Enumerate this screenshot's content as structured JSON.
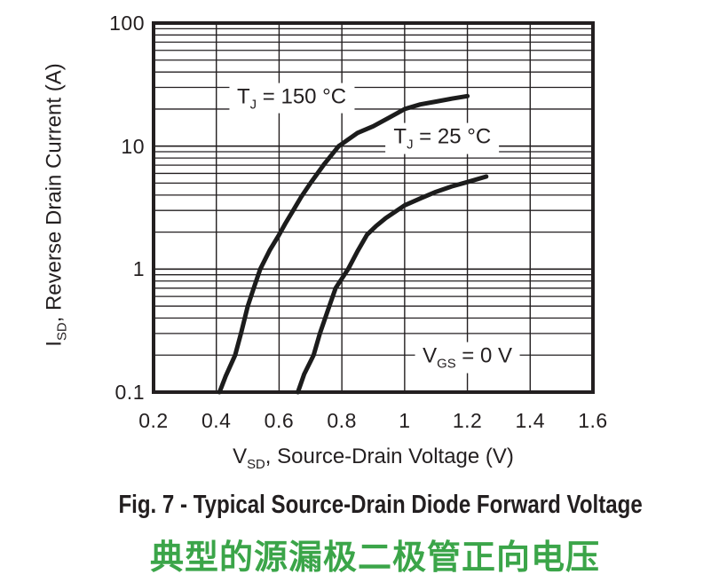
{
  "figure": {
    "caption_en": "Fig. 7 - Typical Source-Drain Diode Forward Voltage",
    "caption_zh": "典型的源漏极二极管正向电压"
  },
  "colors": {
    "line": "#1c1c1c",
    "grid": "#231f20",
    "text": "#231f20",
    "caption_zh_green": "#3ba549"
  },
  "chart_data": {
    "type": "line",
    "title": "",
    "x_axis": {
      "label": {
        "main": "V",
        "sub": "SD",
        "rest": ", Source-Drain Voltage (V)"
      },
      "scale": "linear",
      "min": 0.2,
      "max": 1.6,
      "tick_values": [
        0.2,
        0.4,
        0.6,
        0.8,
        1.0,
        1.2,
        1.4,
        1.6
      ],
      "tick_labels": [
        "0.2",
        "0.4",
        "0.6",
        "0.8",
        "1",
        "1.2",
        "1.4",
        "1.6"
      ],
      "grid": "major"
    },
    "y_axis": {
      "label": {
        "main": "I",
        "sub": "SD",
        "rest": ", Reverse Drain Current (A)"
      },
      "scale": "log",
      "min": 0.1,
      "max": 100,
      "tick_values": [
        100,
        10,
        1,
        0.1
      ],
      "tick_labels": [
        "100",
        "10",
        "1",
        "0.1"
      ],
      "grid": "major+minor"
    },
    "legend_position": "none",
    "series": [
      {
        "name": "TJ = 150 °C",
        "key": "tj-150c",
        "points": [
          [
            0.41,
            0.1
          ],
          [
            0.43,
            0.135
          ],
          [
            0.46,
            0.2
          ],
          [
            0.48,
            0.31
          ],
          [
            0.5,
            0.5
          ],
          [
            0.52,
            0.71
          ],
          [
            0.54,
            1.0
          ],
          [
            0.57,
            1.42
          ],
          [
            0.6,
            1.9
          ],
          [
            0.62,
            2.35
          ],
          [
            0.645,
            3.0
          ],
          [
            0.67,
            3.85
          ],
          [
            0.7,
            5.0
          ],
          [
            0.745,
            7.2
          ],
          [
            0.79,
            10.0
          ],
          [
            0.85,
            12.8
          ],
          [
            0.9,
            14.5
          ],
          [
            0.95,
            17.0
          ],
          [
            1.0,
            20.0
          ],
          [
            1.05,
            21.8
          ],
          [
            1.1,
            23.0
          ],
          [
            1.15,
            24.3
          ],
          [
            1.2,
            25.5
          ]
        ]
      },
      {
        "name": "TJ = 25 °C",
        "key": "tj-25c",
        "points": [
          [
            0.66,
            0.1
          ],
          [
            0.68,
            0.14
          ],
          [
            0.71,
            0.2
          ],
          [
            0.73,
            0.3
          ],
          [
            0.76,
            0.5
          ],
          [
            0.78,
            0.7
          ],
          [
            0.82,
            1.0
          ],
          [
            0.85,
            1.4
          ],
          [
            0.88,
            1.9
          ],
          [
            0.91,
            2.25
          ],
          [
            0.94,
            2.6
          ],
          [
            1.0,
            3.3
          ],
          [
            1.05,
            3.75
          ],
          [
            1.1,
            4.25
          ],
          [
            1.15,
            4.7
          ],
          [
            1.2,
            5.1
          ],
          [
            1.26,
            5.65
          ]
        ]
      }
    ],
    "annotations": [
      {
        "key": "tj-150c",
        "main": "T",
        "sub": "J",
        "rest": " = 150 °C",
        "v": 0.64,
        "i": 24.5
      },
      {
        "key": "tj-25c",
        "main": "T",
        "sub": "J",
        "rest": " = 25 °C",
        "v": 1.12,
        "i": 11.6
      },
      {
        "key": "vgs-0v",
        "main": "V",
        "sub": "GS",
        "rest": " = 0 V",
        "v": 1.2,
        "i": 0.19
      }
    ]
  }
}
